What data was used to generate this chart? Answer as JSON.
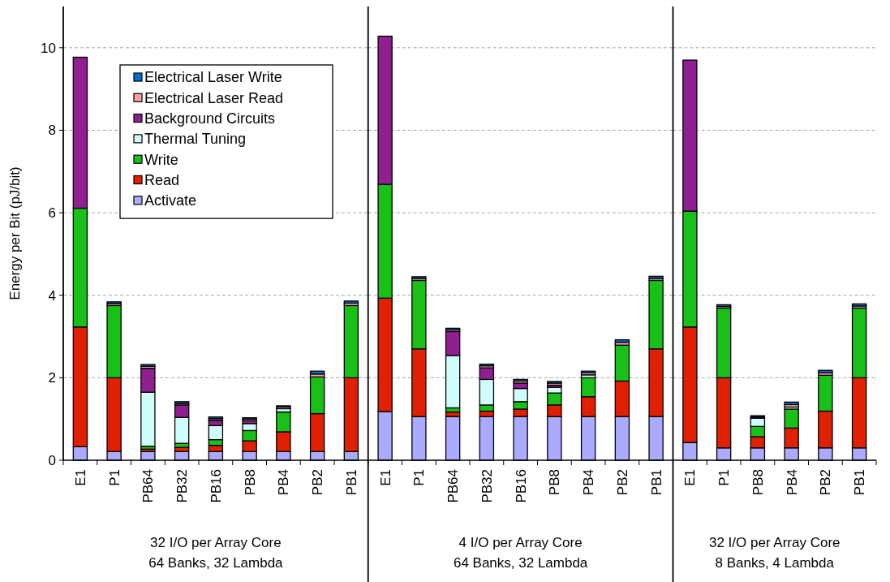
{
  "chart_data": [
    {
      "type": "bar",
      "stacked": true,
      "ylabel": "Energy per Bit (pJ/bit)",
      "xlabel": "32 I/O per Array Core\n64 Banks, 32 Lambda",
      "categories": [
        "E1",
        "P1",
        "PB64",
        "PB32",
        "PB16",
        "PB8",
        "PB4",
        "PB2",
        "PB1"
      ],
      "ylim": [
        0,
        11
      ],
      "yticks": [
        0,
        2,
        4,
        6,
        8,
        10
      ],
      "grid": "y",
      "legend": "top",
      "series": [
        {
          "name": "Activate",
          "color": "#aaaaff",
          "values": [
            0.33,
            0.21,
            0.21,
            0.21,
            0.21,
            0.21,
            0.21,
            0.21,
            0.21
          ]
        },
        {
          "name": "Read",
          "color": "#e02000",
          "values": [
            2.9,
            1.79,
            0.06,
            0.1,
            0.15,
            0.26,
            0.48,
            0.92,
            1.79
          ]
        },
        {
          "name": "Write",
          "color": "#18c018",
          "values": [
            2.88,
            1.75,
            0.07,
            0.1,
            0.14,
            0.25,
            0.48,
            0.89,
            1.75
          ]
        },
        {
          "name": "Thermal Tuning",
          "color": "#d0fcfc",
          "values": [
            0,
            0,
            1.31,
            0.63,
            0.34,
            0.17,
            0.08,
            0,
            0
          ]
        },
        {
          "name": "Background Circuits",
          "color": "#902090",
          "values": [
            3.66,
            0,
            0.58,
            0.3,
            0.13,
            0.07,
            null,
            0,
            0
          ]
        },
        {
          "name": "Electrical Laser Read",
          "color": "#ff9f9f",
          "values": [
            0,
            0.05,
            0.05,
            0.04,
            0.04,
            0.04,
            0.04,
            0.07,
            0.06
          ]
        },
        {
          "name": "Electrical Laser Write",
          "color": "#0070d0",
          "values": [
            0,
            0.04,
            0.04,
            0.04,
            0.04,
            0.03,
            0.03,
            0.07,
            0.05
          ]
        }
      ]
    },
    {
      "type": "bar",
      "stacked": true,
      "xlabel": "4 I/O per Array Core\n64 Banks, 32 Lambda",
      "categories": [
        "E1",
        "P1",
        "PB64",
        "PB32",
        "PB16",
        "PB8",
        "PB4",
        "PB2",
        "PB1"
      ],
      "ylim": [
        0,
        11
      ],
      "yticks": [
        0,
        2,
        4,
        6,
        8,
        10
      ],
      "grid": "y",
      "tick_labels": "x",
      "series": [
        {
          "color": "#aaaaff",
          "values": [
            1.18,
            1.06,
            1.06,
            1.06,
            1.06,
            1.06,
            1.06,
            1.06,
            1.06
          ]
        },
        {
          "color": "#e02000",
          "values": [
            2.75,
            1.64,
            0.11,
            0.13,
            0.18,
            0.28,
            0.48,
            0.86,
            1.64
          ]
        },
        {
          "color": "#18c018",
          "values": [
            2.76,
            1.66,
            0.1,
            0.15,
            0.18,
            0.29,
            0.46,
            0.87,
            1.66
          ]
        },
        {
          "color": "#d0fcfc",
          "values": [
            0,
            0,
            1.27,
            0.62,
            0.32,
            0.14,
            0.07,
            0,
            0
          ]
        },
        {
          "color": "#902090",
          "values": [
            3.59,
            0,
            0.58,
            0.28,
            0.13,
            0.05,
            null,
            0,
            0
          ]
        },
        {
          "color": "#ff9f9f",
          "values": [
            0,
            0.05,
            0.04,
            0.05,
            0.05,
            0.05,
            0.05,
            0.07,
            0.05
          ]
        },
        {
          "color": "#0070d0",
          "values": [
            0,
            0.04,
            0.04,
            0.04,
            0.04,
            0.04,
            0.04,
            0.06,
            0.05
          ]
        }
      ]
    },
    {
      "type": "bar",
      "stacked": true,
      "xlabel": "32 I/O per Array Core\n8 Banks, 4 Lambda",
      "categories": [
        "E1",
        "P1",
        "PB8",
        "PB4",
        "PB2",
        "PB1"
      ],
      "ylim": [
        0,
        11
      ],
      "yticks": [
        0,
        2,
        4,
        6,
        8,
        10
      ],
      "grid": "y",
      "tick_labels": "x",
      "series": [
        {
          "color": "#aaaaff",
          "values": [
            0.43,
            0.3,
            0.3,
            0.3,
            0.3,
            0.3
          ]
        },
        {
          "color": "#e02000",
          "values": [
            2.8,
            1.7,
            0.27,
            0.48,
            0.89,
            1.7
          ]
        },
        {
          "color": "#18c018",
          "values": [
            2.81,
            1.69,
            0.25,
            0.46,
            0.87,
            1.69
          ]
        },
        {
          "color": "#d0fcfc",
          "values": [
            0,
            0,
            0.2,
            0.05,
            0,
            0
          ]
        },
        {
          "color": "#902090",
          "values": [
            3.66,
            0,
            0.03,
            0,
            0,
            0
          ]
        },
        {
          "color": "#ff9f9f",
          "values": [
            0,
            0.04,
            null,
            0.06,
            0.06,
            0.05
          ]
        },
        {
          "color": "#0070d0",
          "values": [
            0,
            0.04,
            0.03,
            0.06,
            0.06,
            0.05
          ]
        }
      ]
    }
  ]
}
